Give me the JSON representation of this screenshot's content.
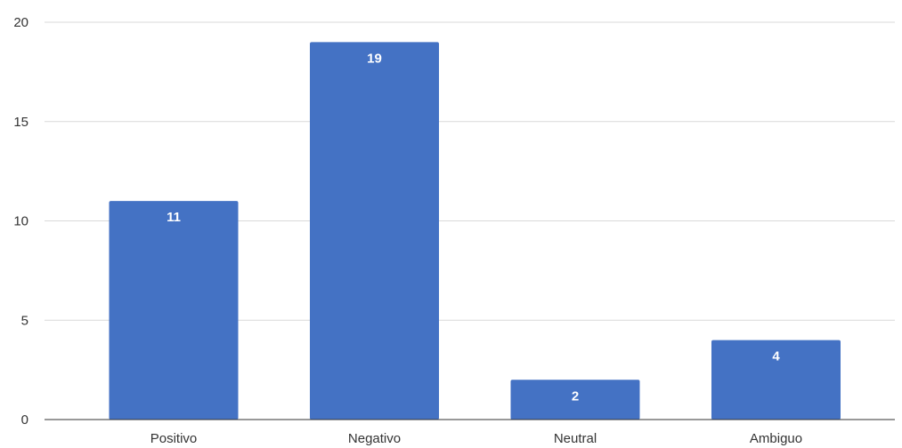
{
  "chart_data": {
    "type": "bar",
    "title": "",
    "xlabel": "",
    "ylabel": "",
    "categories": [
      "Positivo",
      "Negativo",
      "Neutral",
      "Ambiguo"
    ],
    "values": [
      11,
      19,
      2,
      4
    ],
    "data_labels": [
      "11",
      "19",
      "2",
      "4"
    ],
    "ylim": [
      0,
      20
    ],
    "yticks": [
      0,
      5,
      10,
      15,
      20
    ],
    "ytick_labels": [
      "0",
      "5",
      "10",
      "15",
      "20"
    ],
    "bar_color": "#4472c4",
    "grid": true,
    "legend": "none"
  }
}
